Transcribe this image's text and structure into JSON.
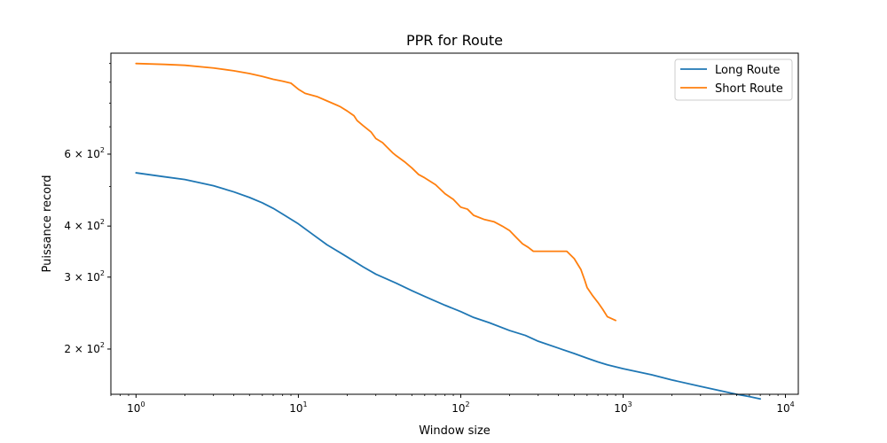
{
  "chart_data": {
    "type": "line",
    "title": "PPR for Route",
    "xlabel": "Window size",
    "ylabel": "Puissance record",
    "xscale": "log",
    "yscale": "log",
    "xlim": [
      0.7,
      12000
    ],
    "ylim": [
      155,
      1060
    ],
    "grid": false,
    "legend_position": "top-right",
    "x_ticks": [
      {
        "value": 1,
        "base": "10",
        "exp": "0"
      },
      {
        "value": 10,
        "base": "10",
        "exp": "1"
      },
      {
        "value": 100,
        "base": "10",
        "exp": "2"
      },
      {
        "value": 1000,
        "base": "10",
        "exp": "3"
      },
      {
        "value": 10000,
        "base": "10",
        "exp": "4"
      }
    ],
    "y_ticks": [
      {
        "value": 200,
        "base": "2 × 10",
        "exp": "2"
      },
      {
        "value": 300,
        "base": "3 × 10",
        "exp": "2"
      },
      {
        "value": 400,
        "base": "4 × 10",
        "exp": "2"
      },
      {
        "value": 600,
        "base": "6 × 10",
        "exp": "2"
      }
    ],
    "y_minor_ticks": [
      500,
      700,
      800,
      900,
      1000
    ],
    "series": [
      {
        "name": "Long Route",
        "color": "#1f77b4",
        "points": [
          [
            1,
            540
          ],
          [
            1.5,
            528
          ],
          [
            2,
            520
          ],
          [
            3,
            502
          ],
          [
            4,
            485
          ],
          [
            5,
            470
          ],
          [
            6,
            456
          ],
          [
            7,
            442
          ],
          [
            8,
            428
          ],
          [
            10,
            405
          ],
          [
            12,
            384
          ],
          [
            15,
            360
          ],
          [
            20,
            336
          ],
          [
            25,
            318
          ],
          [
            30,
            305
          ],
          [
            40,
            290
          ],
          [
            50,
            278
          ],
          [
            60,
            269
          ],
          [
            70,
            262
          ],
          [
            80,
            256
          ],
          [
            100,
            247
          ],
          [
            120,
            239
          ],
          [
            150,
            232
          ],
          [
            200,
            222
          ],
          [
            250,
            216
          ],
          [
            300,
            209
          ],
          [
            400,
            201
          ],
          [
            500,
            195
          ],
          [
            600,
            190
          ],
          [
            700,
            186
          ],
          [
            800,
            183
          ],
          [
            1000,
            179
          ],
          [
            1500,
            173
          ],
          [
            2000,
            168
          ],
          [
            3000,
            162
          ],
          [
            4000,
            158
          ],
          [
            5000,
            155
          ],
          [
            6000,
            153
          ],
          [
            7000,
            151
          ]
        ]
      },
      {
        "name": "Short Route",
        "color": "#ff7f0e",
        "points": [
          [
            1,
            1000
          ],
          [
            1.5,
            995
          ],
          [
            2,
            990
          ],
          [
            3,
            975
          ],
          [
            4,
            960
          ],
          [
            5,
            945
          ],
          [
            6,
            930
          ],
          [
            7,
            915
          ],
          [
            8,
            905
          ],
          [
            9,
            895
          ],
          [
            10,
            865
          ],
          [
            11,
            845
          ],
          [
            13,
            830
          ],
          [
            15,
            810
          ],
          [
            18,
            785
          ],
          [
            20,
            765
          ],
          [
            22,
            745
          ],
          [
            23,
            725
          ],
          [
            25,
            705
          ],
          [
            28,
            680
          ],
          [
            30,
            655
          ],
          [
            33,
            640
          ],
          [
            35,
            625
          ],
          [
            38,
            605
          ],
          [
            40,
            595
          ],
          [
            45,
            575
          ],
          [
            50,
            555
          ],
          [
            55,
            535
          ],
          [
            60,
            525
          ],
          [
            70,
            505
          ],
          [
            80,
            480
          ],
          [
            90,
            465
          ],
          [
            100,
            445
          ],
          [
            110,
            440
          ],
          [
            120,
            425
          ],
          [
            140,
            415
          ],
          [
            160,
            410
          ],
          [
            180,
            400
          ],
          [
            200,
            390
          ],
          [
            220,
            375
          ],
          [
            240,
            362
          ],
          [
            260,
            355
          ],
          [
            280,
            347
          ],
          [
            300,
            347
          ],
          [
            350,
            347
          ],
          [
            400,
            347
          ],
          [
            450,
            347
          ],
          [
            500,
            333
          ],
          [
            550,
            313
          ],
          [
            580,
            295
          ],
          [
            600,
            283
          ],
          [
            650,
            270
          ],
          [
            700,
            260
          ],
          [
            750,
            250
          ],
          [
            800,
            240
          ],
          [
            900,
            235
          ]
        ]
      }
    ]
  }
}
